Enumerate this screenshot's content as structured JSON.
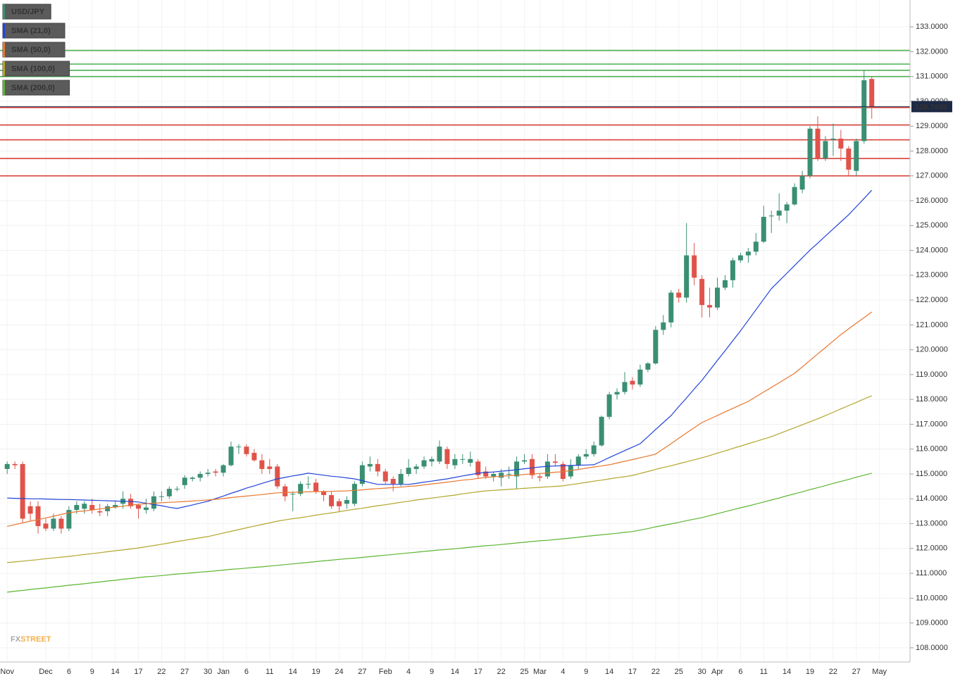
{
  "chart_data": {
    "type": "candlestick",
    "symbol": "USD/JPY",
    "symbol_color": "#3a8f73",
    "candle_colors": {
      "up": "#3a8f73",
      "down": "#e0534a"
    },
    "categories": [
      "Nov",
      null,
      null,
      null,
      null,
      "Dec",
      null,
      null,
      "6",
      null,
      null,
      "9",
      null,
      null,
      "14",
      null,
      null,
      "17",
      null,
      null,
      "22",
      null,
      null,
      "27",
      null,
      null,
      "30",
      null,
      "Jan",
      null,
      null,
      "6",
      null,
      null,
      "11",
      null,
      null,
      "14",
      null,
      null,
      "19",
      null,
      null,
      "24",
      null,
      null,
      "27",
      null,
      null,
      "Feb",
      null,
      null,
      "4",
      null,
      null,
      "9",
      null,
      null,
      "14",
      null,
      null,
      "17",
      null,
      null,
      "22",
      null,
      null,
      "25",
      null,
      "Mar",
      null,
      null,
      "4",
      null,
      null,
      "9",
      null,
      null,
      "14",
      null,
      null,
      "17",
      null,
      null,
      "22",
      null,
      null,
      "25",
      null,
      null,
      "30",
      null,
      "Apr",
      null,
      null,
      "6",
      null,
      null,
      "11",
      null,
      null,
      "14",
      null,
      null,
      "19",
      null,
      null,
      "22",
      null,
      null,
      "27",
      null,
      null,
      "May"
    ],
    "open": [
      115.2,
      115.4,
      115.4,
      113.7,
      113.7,
      113.0,
      112.8,
      113.2,
      112.8,
      113.55,
      113.6,
      113.75,
      113.5,
      113.5,
      113.65,
      113.8,
      114.0,
      113.75,
      113.55,
      113.6,
      114.1,
      114.1,
      114.4,
      114.55,
      114.8,
      114.85,
      115.0,
      115.1,
      115.05,
      115.35,
      116.1,
      116.1,
      115.85,
      115.55,
      115.3,
      115.3,
      114.5,
      114.2,
      114.2,
      114.6,
      114.65,
      114.3,
      114.15,
      113.9,
      113.8,
      113.8,
      114.6,
      115.3,
      115.4,
      115.1,
      114.8,
      114.6,
      115.0,
      115.2,
      115.3,
      115.5,
      115.5,
      116.0,
      115.35,
      115.6,
      115.45,
      115.5,
      115.1,
      114.9,
      114.85,
      115.0,
      114.9,
      115.5,
      115.6,
      114.9,
      114.9,
      115.5,
      115.4,
      114.9,
      115.35,
      115.7,
      115.8,
      116.15,
      117.3,
      118.2,
      118.3,
      118.75,
      118.6,
      119.2,
      119.45,
      120.8,
      121.1,
      122.3,
      122.1,
      123.8,
      122.85,
      121.8,
      121.7,
      122.5,
      122.8,
      123.6,
      123.8,
      123.95,
      124.35,
      125.4,
      125.4,
      125.6,
      125.85,
      126.45,
      127.0,
      128.9,
      127.7,
      128.45,
      128.5,
      128.1,
      127.2,
      128.4,
      130.9,
      null
    ],
    "high": [
      115.5,
      115.5,
      115.5,
      113.9,
      113.9,
      113.2,
      113.4,
      113.3,
      113.7,
      113.9,
      113.9,
      114.0,
      113.8,
      113.8,
      113.9,
      114.3,
      114.2,
      113.8,
      114.0,
      114.3,
      114.3,
      114.5,
      114.5,
      114.95,
      114.9,
      115.1,
      115.2,
      115.2,
      115.4,
      116.3,
      116.2,
      116.2,
      116.0,
      115.8,
      115.6,
      115.4,
      114.6,
      114.3,
      114.7,
      114.9,
      114.8,
      114.35,
      114.3,
      114.0,
      114.1,
      114.7,
      115.5,
      115.7,
      115.6,
      115.2,
      114.9,
      115.2,
      115.6,
      115.4,
      115.7,
      115.7,
      116.35,
      116.1,
      115.8,
      115.8,
      115.9,
      115.6,
      115.3,
      115.1,
      115.2,
      115.3,
      115.7,
      115.8,
      115.8,
      115.0,
      115.8,
      115.8,
      115.5,
      115.6,
      115.8,
      116.0,
      116.3,
      117.35,
      118.3,
      118.45,
      119.1,
      118.9,
      119.4,
      119.5,
      120.95,
      121.4,
      122.4,
      122.45,
      125.1,
      124.3,
      123.0,
      122.5,
      122.9,
      123.0,
      123.7,
      123.9,
      124.1,
      124.7,
      125.8,
      125.6,
      126.3,
      125.95,
      126.7,
      127.2,
      129.0,
      129.4,
      128.6,
      129.1,
      128.85,
      128.2,
      128.5,
      131.25,
      131.0,
      null
    ],
    "low": [
      115.0,
      115.2,
      113.05,
      113.1,
      112.6,
      112.7,
      112.7,
      112.6,
      112.7,
      113.4,
      113.4,
      113.4,
      113.3,
      113.3,
      113.6,
      113.6,
      113.6,
      113.2,
      113.4,
      113.5,
      113.9,
      114.0,
      114.3,
      114.4,
      114.7,
      114.7,
      114.9,
      114.9,
      114.9,
      115.3,
      115.8,
      115.7,
      115.5,
      115.0,
      115.0,
      114.4,
      113.9,
      113.5,
      114.1,
      114.4,
      114.2,
      113.9,
      113.6,
      113.5,
      113.6,
      113.7,
      114.5,
      115.1,
      114.9,
      114.6,
      114.3,
      114.5,
      114.9,
      115.0,
      115.2,
      115.3,
      115.4,
      115.2,
      115.2,
      115.4,
      115.3,
      114.8,
      114.8,
      114.7,
      114.5,
      114.8,
      114.4,
      115.4,
      114.8,
      114.7,
      114.8,
      115.3,
      114.7,
      114.8,
      115.2,
      115.6,
      115.7,
      116.1,
      117.2,
      118.0,
      118.2,
      118.4,
      118.5,
      119.1,
      119.4,
      120.6,
      120.9,
      121.9,
      121.9,
      122.6,
      121.3,
      121.3,
      121.6,
      122.4,
      122.5,
      123.5,
      123.5,
      123.8,
      124.3,
      124.7,
      125.2,
      125.1,
      125.8,
      126.3,
      126.9,
      127.6,
      127.6,
      127.8,
      127.6,
      127.0,
      127.0,
      128.3,
      129.3,
      null
    ],
    "close": [
      115.4,
      115.35,
      113.2,
      113.4,
      112.9,
      112.8,
      113.2,
      112.8,
      113.55,
      113.75,
      113.8,
      113.55,
      113.45,
      113.7,
      113.75,
      114.0,
      113.7,
      113.6,
      113.65,
      114.1,
      114.1,
      114.4,
      114.4,
      114.85,
      114.85,
      115.0,
      115.05,
      115.05,
      115.35,
      116.1,
      116.1,
      115.8,
      115.55,
      115.2,
      115.2,
      114.5,
      114.1,
      114.2,
      114.6,
      114.6,
      114.3,
      114.15,
      113.7,
      113.7,
      113.95,
      114.6,
      115.35,
      115.4,
      115.1,
      114.7,
      114.6,
      115.0,
      115.25,
      115.3,
      115.55,
      115.6,
      116.1,
      115.4,
      115.6,
      115.6,
      115.6,
      114.95,
      114.9,
      115.0,
      115.05,
      115.0,
      115.5,
      115.55,
      114.95,
      114.85,
      115.5,
      115.45,
      114.8,
      115.35,
      115.7,
      115.8,
      116.15,
      117.3,
      118.2,
      118.3,
      118.7,
      118.6,
      119.2,
      119.45,
      120.8,
      121.1,
      122.3,
      122.1,
      123.8,
      122.9,
      121.8,
      121.7,
      122.5,
      122.8,
      123.6,
      123.8,
      123.95,
      124.35,
      125.35,
      125.4,
      125.6,
      125.85,
      126.55,
      127.0,
      128.9,
      127.7,
      128.4,
      128.5,
      128.1,
      127.25,
      128.4,
      130.85,
      129.788,
      null
    ],
    "series": [
      {
        "name": "SMA (21,0)",
        "color": "#2244d8",
        "values": [
          114.03,
          114.02,
          114.01,
          114.0,
          114.0,
          113.99,
          113.98,
          113.97,
          113.97,
          113.96,
          113.95,
          113.94,
          113.93,
          113.92,
          113.91,
          113.9,
          113.89,
          113.87,
          113.82,
          113.77,
          113.72,
          113.66,
          113.61,
          113.68,
          113.75,
          113.83,
          113.9,
          114.01,
          114.11,
          114.22,
          114.32,
          114.43,
          114.52,
          114.62,
          114.71,
          114.8,
          114.86,
          114.92,
          114.97,
          115.03,
          114.99,
          114.95,
          114.91,
          114.88,
          114.84,
          114.8,
          114.73,
          114.65,
          114.58,
          114.58,
          114.58,
          114.58,
          114.58,
          114.62,
          114.67,
          114.71,
          114.76,
          114.8,
          114.86,
          114.92,
          114.97,
          115.03,
          115.06,
          115.08,
          115.11,
          115.14,
          115.17,
          115.21,
          115.24,
          115.28,
          115.31,
          115.32,
          115.33,
          115.34,
          115.35,
          115.36,
          115.37,
          115.51,
          115.66,
          115.8,
          115.94,
          116.08,
          116.22,
          116.5,
          116.79,
          117.07,
          117.35,
          117.71,
          118.06,
          118.42,
          118.77,
          119.17,
          119.57,
          119.96,
          120.36,
          120.76,
          121.19,
          121.61,
          122.04,
          122.46,
          122.77,
          123.08,
          123.39,
          123.7,
          124.01,
          124.29,
          124.58,
          124.86,
          125.15,
          125.43,
          125.76,
          126.09,
          126.42,
          null
        ]
      },
      {
        "name": "SMA (50,0)",
        "color": "#e8772e",
        "values": [
          112.89,
          112.96,
          113.03,
          113.1,
          113.16,
          113.23,
          113.3,
          113.37,
          113.44,
          113.48,
          113.51,
          113.55,
          113.59,
          113.63,
          113.67,
          113.7,
          113.74,
          113.78,
          113.8,
          113.82,
          113.84,
          113.86,
          113.87,
          113.89,
          113.91,
          113.93,
          113.95,
          113.98,
          114.01,
          114.05,
          114.08,
          114.11,
          114.14,
          114.17,
          114.21,
          114.24,
          114.25,
          114.26,
          114.27,
          114.28,
          114.29,
          114.29,
          114.3,
          114.31,
          114.32,
          114.34,
          114.36,
          114.39,
          114.41,
          114.43,
          114.45,
          114.47,
          114.5,
          114.52,
          114.56,
          114.6,
          114.63,
          114.67,
          114.71,
          114.75,
          114.78,
          114.82,
          114.86,
          114.88,
          114.91,
          114.93,
          114.95,
          114.98,
          115.0,
          115.02,
          115.04,
          115.07,
          115.09,
          115.14,
          115.18,
          115.23,
          115.28,
          115.32,
          115.37,
          115.44,
          115.51,
          115.58,
          115.65,
          115.72,
          115.8,
          116.01,
          116.22,
          116.44,
          116.65,
          116.86,
          117.07,
          117.21,
          117.35,
          117.5,
          117.64,
          117.78,
          117.92,
          118.11,
          118.3,
          118.48,
          118.67,
          118.86,
          119.05,
          119.31,
          119.57,
          119.83,
          120.09,
          120.35,
          120.61,
          120.84,
          121.07,
          121.29,
          121.52,
          null
        ]
      },
      {
        "name": "SMA (100,0)",
        "color": "#b3a52a",
        "values": [
          111.43,
          111.46,
          111.49,
          111.52,
          111.55,
          111.59,
          111.62,
          111.65,
          111.68,
          111.72,
          111.76,
          111.79,
          111.83,
          111.87,
          111.91,
          111.94,
          111.98,
          112.02,
          112.07,
          112.12,
          112.17,
          112.22,
          112.28,
          112.33,
          112.38,
          112.43,
          112.48,
          112.55,
          112.62,
          112.69,
          112.76,
          112.83,
          112.9,
          112.96,
          113.03,
          113.1,
          113.15,
          113.2,
          113.24,
          113.29,
          113.34,
          113.39,
          113.43,
          113.48,
          113.53,
          113.58,
          113.62,
          113.67,
          113.72,
          113.76,
          113.81,
          113.86,
          113.9,
          113.95,
          113.99,
          114.03,
          114.07,
          114.11,
          114.15,
          114.2,
          114.24,
          114.28,
          114.32,
          114.34,
          114.36,
          114.38,
          114.4,
          114.42,
          114.44,
          114.46,
          114.48,
          114.5,
          114.52,
          114.57,
          114.61,
          114.66,
          114.71,
          114.75,
          114.8,
          114.85,
          114.89,
          114.94,
          115.02,
          115.1,
          115.18,
          115.26,
          115.33,
          115.41,
          115.49,
          115.57,
          115.65,
          115.74,
          115.84,
          115.93,
          116.03,
          116.12,
          116.22,
          116.31,
          116.41,
          116.5,
          116.62,
          116.74,
          116.86,
          116.98,
          117.1,
          117.22,
          117.35,
          117.48,
          117.62,
          117.75,
          117.88,
          118.02,
          118.15,
          null
        ]
      },
      {
        "name": "SMA (200,0)",
        "color": "#5cb531",
        "values": [
          110.24,
          110.28,
          110.31,
          110.35,
          110.38,
          110.41,
          110.45,
          110.48,
          110.52,
          110.55,
          110.58,
          110.62,
          110.65,
          110.69,
          110.72,
          110.76,
          110.79,
          110.83,
          110.86,
          110.88,
          110.91,
          110.94,
          110.97,
          110.99,
          111.02,
          111.05,
          111.07,
          111.1,
          111.13,
          111.16,
          111.18,
          111.21,
          111.24,
          111.26,
          111.29,
          111.32,
          111.35,
          111.38,
          111.41,
          111.44,
          111.47,
          111.5,
          111.53,
          111.56,
          111.59,
          111.61,
          111.64,
          111.67,
          111.7,
          111.73,
          111.76,
          111.79,
          111.82,
          111.85,
          111.88,
          111.91,
          111.94,
          111.96,
          111.99,
          112.02,
          112.05,
          112.08,
          112.11,
          112.13,
          112.16,
          112.19,
          112.22,
          112.25,
          112.28,
          112.31,
          112.33,
          112.36,
          112.39,
          112.42,
          112.45,
          112.49,
          112.52,
          112.55,
          112.58,
          112.61,
          112.65,
          112.68,
          112.74,
          112.8,
          112.87,
          112.93,
          112.99,
          113.05,
          113.12,
          113.18,
          113.24,
          113.32,
          113.4,
          113.48,
          113.56,
          113.64,
          113.71,
          113.79,
          113.87,
          113.95,
          114.03,
          114.12,
          114.2,
          114.28,
          114.37,
          114.45,
          114.53,
          114.62,
          114.7,
          114.78,
          114.87,
          114.95,
          115.03,
          null
        ]
      }
    ],
    "ylim": [
      107.43,
      134.08
    ],
    "yticks": [
      {
        "value": 133,
        "label": "133.0000"
      },
      {
        "value": 132,
        "label": "132.0000"
      },
      {
        "value": 131,
        "label": "131.0000"
      },
      {
        "value": 130,
        "label": "130.0000"
      },
      {
        "value": 129,
        "label": "129.0000"
      },
      {
        "value": 128,
        "label": "128.0000"
      },
      {
        "value": 127,
        "label": "127.0000"
      },
      {
        "value": 126,
        "label": "126.0000"
      },
      {
        "value": 125,
        "label": "125.0000"
      },
      {
        "value": 124,
        "label": "124.0000"
      },
      {
        "value": 123,
        "label": "123.0000"
      },
      {
        "value": 122,
        "label": "122.0000"
      },
      {
        "value": 121,
        "label": "121.0000"
      },
      {
        "value": 120,
        "label": "120.0000"
      },
      {
        "value": 119,
        "label": "119.0000"
      },
      {
        "value": 118,
        "label": "118.0000"
      },
      {
        "value": 117,
        "label": "117.0000"
      },
      {
        "value": 116,
        "label": "116.0000"
      },
      {
        "value": 115,
        "label": "115.0000"
      },
      {
        "value": 114,
        "label": "114.0000"
      },
      {
        "value": 113,
        "label": "113.0000"
      },
      {
        "value": 112,
        "label": "112.0000"
      },
      {
        "value": 111,
        "label": "111.0000"
      },
      {
        "value": 110,
        "label": "110.0000"
      },
      {
        "value": 109,
        "label": "109.0000"
      },
      {
        "value": 108,
        "label": "108.0000"
      }
    ],
    "grid": true,
    "levels": [
      {
        "value": 132.05,
        "color": "#4caf50"
      },
      {
        "value": 131.5,
        "color": "#4caf50"
      },
      {
        "value": 131.25,
        "color": "#4caf50"
      },
      {
        "value": 131.0,
        "color": "#4caf50"
      },
      {
        "value": 129.75,
        "color": "#d9403a"
      },
      {
        "value": 129.05,
        "color": "#d9403a"
      },
      {
        "value": 128.45,
        "color": "#d9403a"
      },
      {
        "value": 127.7,
        "color": "#d9403a"
      },
      {
        "value": 127.0,
        "color": "#d9403a"
      }
    ],
    "last_price": {
      "value": 129.788,
      "label": "129.7880"
    },
    "watermark": [
      "FX",
      "STREET"
    ]
  }
}
